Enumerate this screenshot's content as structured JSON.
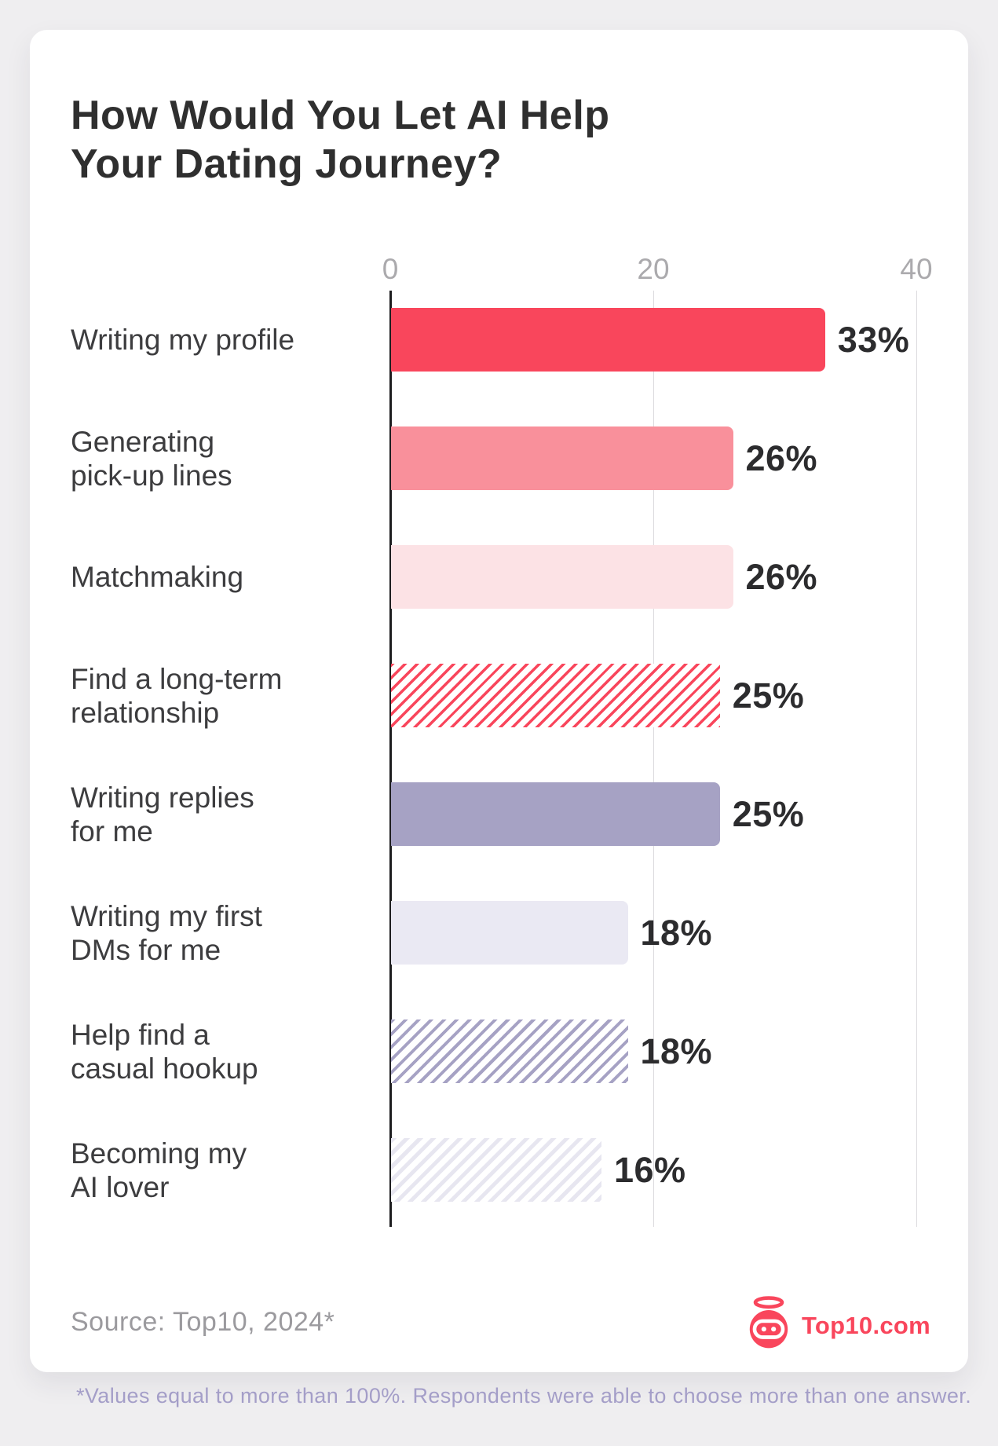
{
  "header": {
    "title": "How Would You Let AI Help\nYour Dating Journey?"
  },
  "chart_data": {
    "type": "bar",
    "orientation": "horizontal",
    "title": "How Would You Let AI Help Your Dating Journey?",
    "categories": [
      "Writing my profile",
      "Generating\npick-up lines",
      "Matchmaking",
      "Find a long-term\nrelationship",
      "Writing replies\nfor me",
      "Writing my first\nDMs for me",
      "Help find a\ncasual hookup",
      "Becoming my\nAI lover"
    ],
    "values": [
      33,
      26,
      26,
      25,
      25,
      18,
      18,
      16
    ],
    "value_labels": [
      "33%",
      "26%",
      "26%",
      "25%",
      "25%",
      "18%",
      "18%",
      "16%"
    ],
    "bar_styles": [
      "solid-red",
      "solid-pink",
      "solid-lightpink",
      "hatch-red",
      "solid-purple",
      "solid-lavender",
      "hatch-purple",
      "hatch-lavender"
    ],
    "x_ticks": [
      "0",
      "20",
      "40"
    ],
    "xlim": [
      0,
      40
    ],
    "grid": "vertical-lines-at-ticks",
    "legend": "none",
    "value_label_position": "right-of-bar"
  },
  "colors": {
    "accent_red": "#f9465c",
    "mid_pink": "#f9909b",
    "light_pink": "#fce2e5",
    "purple": "#a6a2c4",
    "light_lavender": "#eae9f3",
    "axis_line": "#1d1d1f",
    "gridline": "#dcdbde",
    "tick_text": "#abaaad",
    "footnote_text": "#a49ec8"
  },
  "footer": {
    "source": "Source: Top10, 2024*",
    "logo_text": "Top10.com",
    "footnote": "*Values equal to more than 100%. Respondents were able to choose more than one answer."
  },
  "icons": {
    "logo_robot": "robot-head-with-halo-icon"
  }
}
